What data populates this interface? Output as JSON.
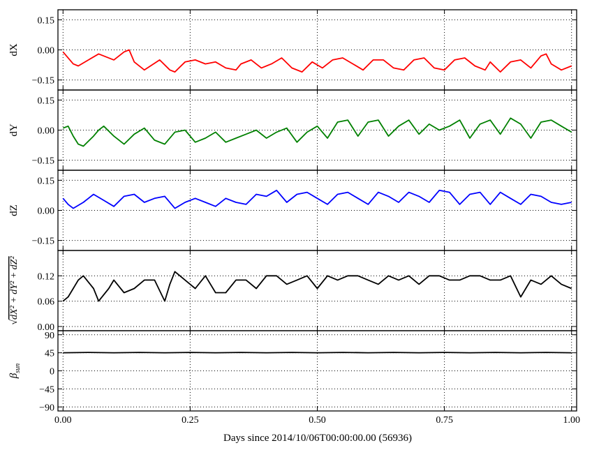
{
  "figure": {
    "xlabel": "Days since 2014/10/06T00:00:00.00 (56936)",
    "x_ticks": [
      "0.00",
      "0.25",
      "0.50",
      "0.75",
      "1.00"
    ],
    "x_tick_values": [
      0,
      0.25,
      0.5,
      0.75,
      1.0
    ],
    "xlim": [
      -0.01,
      1.01
    ]
  },
  "chart_data": [
    {
      "type": "line",
      "ylabel": "dX",
      "ylim": [
        -0.2,
        0.2
      ],
      "y_ticks": [
        "0.15",
        "0.00",
        "−0.15"
      ],
      "y_tick_values": [
        0.15,
        0.0,
        -0.15
      ],
      "grid": true,
      "color": "#ff0000",
      "series": [
        {
          "x": [
            0.0,
            0.02,
            0.03,
            0.05,
            0.07,
            0.1,
            0.12,
            0.13,
            0.14,
            0.16,
            0.19,
            0.21,
            0.22,
            0.24,
            0.26,
            0.28,
            0.3,
            0.32,
            0.34,
            0.35,
            0.37,
            0.39,
            0.41,
            0.43,
            0.45,
            0.47,
            0.49,
            0.51,
            0.53,
            0.55,
            0.57,
            0.59,
            0.61,
            0.63,
            0.65,
            0.67,
            0.69,
            0.71,
            0.73,
            0.75,
            0.77,
            0.79,
            0.81,
            0.83,
            0.84,
            0.86,
            0.88,
            0.9,
            0.92,
            0.94,
            0.95,
            0.96,
            0.98,
            1.0
          ],
          "y": [
            -0.01,
            -0.07,
            -0.08,
            -0.05,
            -0.02,
            -0.05,
            -0.01,
            -0.0,
            -0.06,
            -0.1,
            -0.05,
            -0.1,
            -0.11,
            -0.06,
            -0.05,
            -0.07,
            -0.06,
            -0.09,
            -0.1,
            -0.07,
            -0.05,
            -0.09,
            -0.07,
            -0.04,
            -0.09,
            -0.11,
            -0.06,
            -0.09,
            -0.05,
            -0.04,
            -0.07,
            -0.1,
            -0.05,
            -0.05,
            -0.09,
            -0.1,
            -0.05,
            -0.04,
            -0.09,
            -0.1,
            -0.05,
            -0.04,
            -0.08,
            -0.1,
            -0.06,
            -0.11,
            -0.06,
            -0.05,
            -0.09,
            -0.03,
            -0.02,
            -0.07,
            -0.1,
            -0.08
          ]
        }
      ]
    },
    {
      "type": "line",
      "ylabel": "dY",
      "ylim": [
        -0.2,
        0.2
      ],
      "y_ticks": [
        "0.15",
        "0.00",
        "−0.15"
      ],
      "y_tick_values": [
        0.15,
        0.0,
        -0.15
      ],
      "grid": true,
      "color": "#008000",
      "series": [
        {
          "x": [
            0.0,
            0.01,
            0.02,
            0.03,
            0.04,
            0.06,
            0.07,
            0.08,
            0.1,
            0.12,
            0.14,
            0.16,
            0.18,
            0.2,
            0.22,
            0.24,
            0.26,
            0.28,
            0.3,
            0.32,
            0.34,
            0.36,
            0.38,
            0.4,
            0.42,
            0.44,
            0.46,
            0.48,
            0.5,
            0.52,
            0.54,
            0.56,
            0.58,
            0.6,
            0.62,
            0.64,
            0.66,
            0.68,
            0.7,
            0.72,
            0.74,
            0.76,
            0.78,
            0.8,
            0.82,
            0.84,
            0.86,
            0.88,
            0.9,
            0.92,
            0.94,
            0.96,
            0.98,
            1.0
          ],
          "y": [
            0.01,
            0.02,
            -0.03,
            -0.07,
            -0.08,
            -0.03,
            0.0,
            0.02,
            -0.03,
            -0.07,
            -0.02,
            0.01,
            -0.05,
            -0.07,
            -0.01,
            0.0,
            -0.06,
            -0.04,
            -0.01,
            -0.06,
            -0.04,
            -0.02,
            0.0,
            -0.04,
            -0.01,
            0.01,
            -0.06,
            -0.01,
            0.02,
            -0.04,
            0.04,
            0.05,
            -0.03,
            0.04,
            0.05,
            -0.03,
            0.02,
            0.05,
            -0.02,
            0.03,
            0.0,
            0.02,
            0.05,
            -0.04,
            0.03,
            0.05,
            -0.02,
            0.06,
            0.03,
            -0.04,
            0.04,
            0.05,
            0.02,
            -0.01
          ]
        }
      ]
    },
    {
      "type": "line",
      "ylabel": "dZ",
      "ylim": [
        -0.2,
        0.2
      ],
      "y_ticks": [
        "0.15",
        "0.00",
        "−0.15"
      ],
      "y_tick_values": [
        0.15,
        0.0,
        -0.15
      ],
      "grid": true,
      "color": "#0000ff",
      "series": [
        {
          "x": [
            0.0,
            0.01,
            0.02,
            0.04,
            0.06,
            0.08,
            0.1,
            0.12,
            0.14,
            0.16,
            0.18,
            0.2,
            0.22,
            0.24,
            0.26,
            0.28,
            0.3,
            0.32,
            0.34,
            0.36,
            0.38,
            0.4,
            0.42,
            0.44,
            0.46,
            0.48,
            0.5,
            0.52,
            0.54,
            0.56,
            0.58,
            0.6,
            0.62,
            0.64,
            0.66,
            0.68,
            0.7,
            0.72,
            0.74,
            0.76,
            0.78,
            0.8,
            0.82,
            0.84,
            0.86,
            0.88,
            0.9,
            0.92,
            0.94,
            0.96,
            0.98,
            1.0
          ],
          "y": [
            0.06,
            0.03,
            0.01,
            0.04,
            0.08,
            0.05,
            0.02,
            0.07,
            0.08,
            0.04,
            0.06,
            0.07,
            0.01,
            0.04,
            0.06,
            0.04,
            0.02,
            0.06,
            0.04,
            0.03,
            0.08,
            0.07,
            0.1,
            0.04,
            0.08,
            0.09,
            0.06,
            0.03,
            0.08,
            0.09,
            0.06,
            0.03,
            0.09,
            0.07,
            0.04,
            0.09,
            0.07,
            0.04,
            0.1,
            0.09,
            0.03,
            0.08,
            0.09,
            0.03,
            0.09,
            0.06,
            0.03,
            0.08,
            0.07,
            0.04,
            0.03,
            0.04
          ]
        }
      ]
    },
    {
      "type": "line",
      "ylabel": "√(dX² + dY² + dZ²)",
      "ylim": [
        -0.01,
        0.18
      ],
      "y_ticks": [
        "0.12",
        "0.06",
        "0.00"
      ],
      "y_tick_values": [
        0.12,
        0.06,
        0.0
      ],
      "grid": true,
      "color": "#000000",
      "series": [
        {
          "x": [
            0.0,
            0.01,
            0.02,
            0.03,
            0.04,
            0.06,
            0.07,
            0.09,
            0.1,
            0.12,
            0.14,
            0.16,
            0.18,
            0.2,
            0.21,
            0.22,
            0.24,
            0.26,
            0.28,
            0.3,
            0.32,
            0.34,
            0.36,
            0.38,
            0.4,
            0.42,
            0.44,
            0.46,
            0.48,
            0.5,
            0.52,
            0.54,
            0.56,
            0.58,
            0.6,
            0.62,
            0.64,
            0.66,
            0.68,
            0.7,
            0.72,
            0.74,
            0.76,
            0.78,
            0.8,
            0.82,
            0.84,
            0.86,
            0.88,
            0.9,
            0.92,
            0.94,
            0.96,
            0.98,
            1.0
          ],
          "y": [
            0.06,
            0.07,
            0.09,
            0.11,
            0.12,
            0.09,
            0.06,
            0.09,
            0.11,
            0.08,
            0.09,
            0.11,
            0.11,
            0.06,
            0.1,
            0.13,
            0.11,
            0.09,
            0.12,
            0.08,
            0.08,
            0.11,
            0.11,
            0.09,
            0.12,
            0.12,
            0.1,
            0.11,
            0.12,
            0.09,
            0.12,
            0.11,
            0.12,
            0.12,
            0.11,
            0.1,
            0.12,
            0.11,
            0.12,
            0.1,
            0.12,
            0.12,
            0.11,
            0.11,
            0.12,
            0.12,
            0.11,
            0.11,
            0.12,
            0.07,
            0.11,
            0.1,
            0.12,
            0.1,
            0.09
          ]
        }
      ]
    },
    {
      "type": "line",
      "ylabel": "βsun",
      "ylim": [
        -100,
        100
      ],
      "y_ticks": [
        "90",
        "45",
        "0",
        "−45",
        "−90"
      ],
      "y_tick_values": [
        90,
        45,
        0,
        -45,
        -90
      ],
      "grid": true,
      "color": "#000000",
      "series": [
        {
          "x": [
            0.0,
            0.05,
            0.1,
            0.15,
            0.2,
            0.25,
            0.3,
            0.35,
            0.4,
            0.45,
            0.5,
            0.55,
            0.6,
            0.65,
            0.7,
            0.75,
            0.8,
            0.85,
            0.9,
            0.95,
            1.0
          ],
          "y": [
            45,
            46,
            45,
            46,
            45,
            46,
            45,
            46,
            45,
            46,
            45,
            46,
            45,
            46,
            45,
            46,
            45,
            46,
            45,
            46,
            45
          ]
        }
      ]
    }
  ]
}
